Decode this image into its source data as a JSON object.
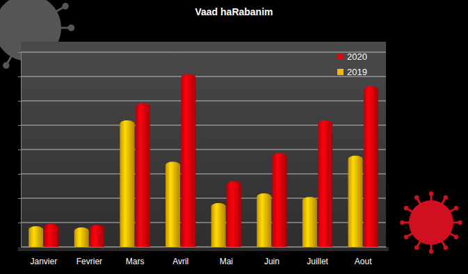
{
  "chart_data": {
    "type": "bar",
    "title": "Vaad haRabanim",
    "categories": [
      "Janvier",
      "Fevrier",
      "Mars",
      "Avril",
      "Mai",
      "Juin",
      "Juillet",
      "Aout"
    ],
    "series": [
      {
        "name": "2019",
        "color": "#f5b800",
        "values": [
          0.85,
          0.8,
          5.2,
          3.5,
          1.8,
          2.2,
          2.05,
          3.75
        ]
      },
      {
        "name": "2020",
        "color": "#e8000b",
        "values": [
          0.95,
          0.9,
          5.9,
          7.1,
          2.7,
          3.85,
          5.2,
          6.6
        ]
      }
    ],
    "ylim": [
      0,
      8
    ],
    "yticks": [
      0,
      1,
      2,
      3,
      4,
      5,
      6,
      7,
      8
    ],
    "grid": true,
    "legend": "top-right",
    "tick_labels": "x"
  }
}
